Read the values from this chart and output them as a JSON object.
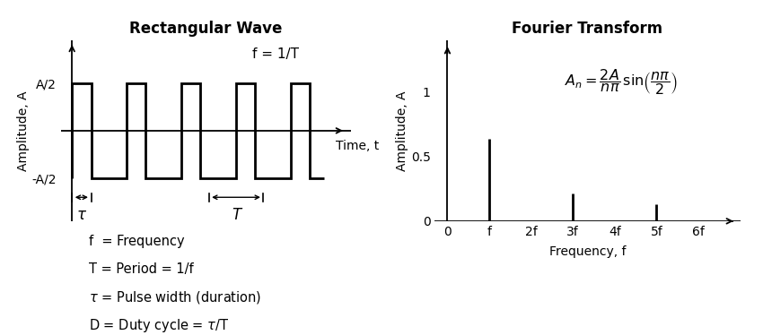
{
  "title_left": "Rectangular Wave",
  "title_right": "Fourier Transform",
  "ylabel_left": "Amplitude, A",
  "xlabel_left": "Time, t",
  "ylabel_right": "Amplitude, A",
  "xlabel_right": "Frequency, f",
  "yticks_left": [
    "A/2",
    "-A/2"
  ],
  "ytick_vals_left": [
    0.5,
    -0.5
  ],
  "freq_labels": [
    "0",
    "f",
    "2f",
    "3f",
    "4f",
    "5f",
    "6f"
  ],
  "freq_positions": [
    0,
    1,
    2,
    3,
    4,
    5,
    6
  ],
  "bar_heights": [
    0,
    0.6366,
    0,
    0.2122,
    0,
    0.1273,
    0
  ],
  "bar_positions": [
    0,
    1,
    2,
    3,
    4,
    5,
    6
  ],
  "yticks_right": [
    0,
    0.5,
    1
  ],
  "ylim_right": [
    0,
    1.4
  ],
  "annotation_f_eq": "f = 1/T",
  "legend_lines": [
    "f  = Frequency",
    "T = Period = 1/f",
    "$\\tau$ = Pulse width (duration)",
    "D = Duty cycle = $\\tau$/T"
  ],
  "background_color": "#ffffff",
  "wave_color": "#000000",
  "bar_color": "#000000",
  "axis_color": "#000000",
  "title_fontsize": 12,
  "label_fontsize": 10,
  "tick_fontsize": 10,
  "annotation_fontsize": 11,
  "legend_fontsize": 10.5
}
